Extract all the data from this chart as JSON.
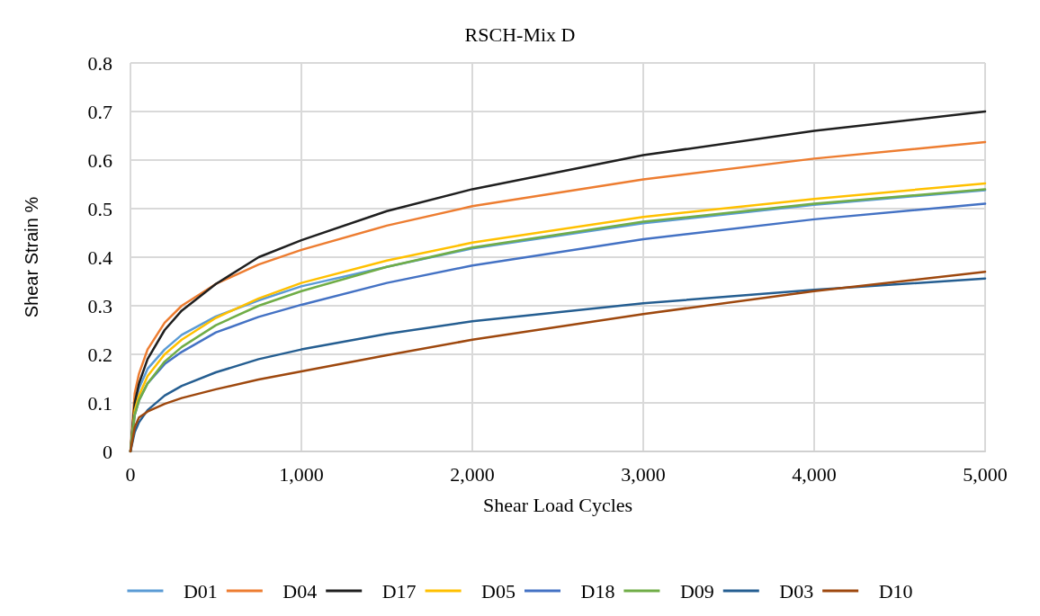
{
  "chart_data": {
    "type": "line",
    "title": "RSCH-Mix D",
    "xlabel": "Shear Load Cycles",
    "ylabel": "Shear Strain %",
    "x": [
      0,
      25,
      50,
      100,
      200,
      300,
      500,
      750,
      1000,
      1500,
      2000,
      3000,
      4000,
      5000
    ],
    "series": [
      {
        "name": "D01",
        "color": "#5b9bd5",
        "values": [
          0,
          0.095,
          0.13,
          0.17,
          0.21,
          0.24,
          0.278,
          0.311,
          0.34,
          0.38,
          0.418,
          0.47,
          0.508,
          0.538
        ]
      },
      {
        "name": "D04",
        "color": "#ed7d31",
        "values": [
          0,
          0.12,
          0.16,
          0.21,
          0.265,
          0.3,
          0.345,
          0.385,
          0.415,
          0.465,
          0.505,
          0.56,
          0.603,
          0.637
        ]
      },
      {
        "name": "D17",
        "color": "#1f1f1f",
        "values": [
          0,
          0.1,
          0.14,
          0.19,
          0.25,
          0.29,
          0.345,
          0.4,
          0.435,
          0.495,
          0.54,
          0.61,
          0.66,
          0.7
        ]
      },
      {
        "name": "D05",
        "color": "#ffc000",
        "values": [
          0,
          0.085,
          0.115,
          0.155,
          0.2,
          0.23,
          0.275,
          0.315,
          0.347,
          0.393,
          0.43,
          0.483,
          0.52,
          0.552
        ]
      },
      {
        "name": "D18",
        "color": "#4472c4",
        "values": [
          0,
          0.075,
          0.105,
          0.14,
          0.18,
          0.205,
          0.245,
          0.277,
          0.302,
          0.347,
          0.383,
          0.437,
          0.478,
          0.51
        ]
      },
      {
        "name": "D09",
        "color": "#70ad47",
        "values": [
          0,
          0.075,
          0.105,
          0.14,
          0.185,
          0.215,
          0.26,
          0.3,
          0.33,
          0.38,
          0.42,
          0.473,
          0.51,
          0.54
        ]
      },
      {
        "name": "D03",
        "color": "#255e91",
        "values": [
          0,
          0.04,
          0.06,
          0.085,
          0.115,
          0.135,
          0.163,
          0.19,
          0.21,
          0.242,
          0.268,
          0.305,
          0.333,
          0.356
        ]
      },
      {
        "name": "D10",
        "color": "#9e480e",
        "values": [
          0,
          0.05,
          0.07,
          0.082,
          0.098,
          0.11,
          0.128,
          0.148,
          0.165,
          0.198,
          0.23,
          0.283,
          0.33,
          0.37
        ]
      }
    ],
    "xlim": [
      0,
      5000
    ],
    "xticks": [
      0,
      {
        "value": 1000,
        "label": "1,000"
      },
      {
        "value": 2000,
        "label": "2,000"
      },
      {
        "value": 3000,
        "label": "3,000"
      },
      {
        "value": 4000,
        "label": "4,000"
      },
      {
        "value": 5000,
        "label": "5,000"
      }
    ],
    "ylim": [
      0,
      0.8
    ],
    "yticks": [
      0,
      0.1,
      0.2,
      0.3,
      0.4,
      0.5,
      0.6,
      0.7,
      0.8
    ],
    "grid": true,
    "legend": "bottom",
    "marker": "none",
    "line_style": "solid"
  }
}
